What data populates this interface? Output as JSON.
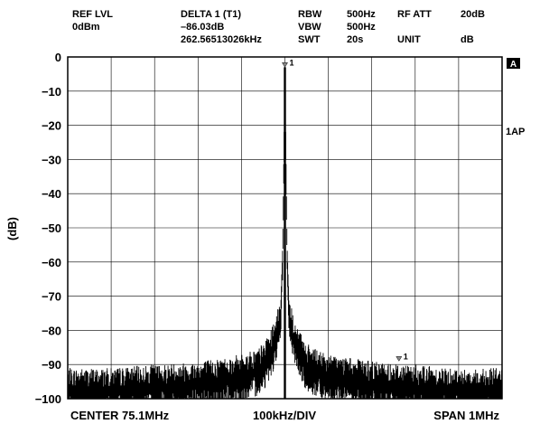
{
  "header": {
    "ref_lvl_label": "REF LVL",
    "ref_lvl_value": "0dBm",
    "delta_label": "DELTA 1 (T1)",
    "delta_level": "–86.03dB",
    "delta_freq": "262.56513026kHz",
    "rbw_label": "RBW",
    "rbw_value": "500Hz",
    "vbw_label": "VBW",
    "vbw_value": "500Hz",
    "swt_label": "SWT",
    "swt_value": "20s",
    "rf_att_label": "RF ATT",
    "rf_att_value": "20dB",
    "unit_label": "UNIT",
    "unit_value": "dB"
  },
  "side": {
    "trace_badge": "A",
    "detector": "1AP"
  },
  "footer": {
    "center": "CENTER 75.1MHz",
    "div": "100kHz/DIV",
    "span": "SPAN 1MHz"
  },
  "colors": {
    "trace": "#000000",
    "grid": "#000000",
    "background": "#ffffff"
  },
  "chart_data": {
    "type": "line",
    "title": "",
    "xlabel": "",
    "ylabel": "(dB)",
    "ylim": [
      -100,
      0
    ],
    "yticks": [
      "0",
      "−10",
      "−20",
      "−30",
      "−40",
      "−50",
      "−60",
      "−70",
      "−80",
      "−90",
      "−100"
    ],
    "xlim_khz": [
      -500,
      500
    ],
    "x_divisions": 10,
    "grid": true,
    "series": [
      {
        "x_khz": [
          -500,
          -400,
          -300,
          -200,
          -150,
          -100,
          -60,
          -40,
          -20,
          -10,
          -5,
          0,
          5,
          10,
          20,
          40,
          60,
          100,
          150,
          200,
          300,
          400,
          500
        ],
        "values": [
          -95,
          -95,
          -94,
          -93,
          -92,
          -91,
          -89,
          -86,
          -80,
          -74,
          -55,
          -3,
          -55,
          -74,
          -80,
          -86,
          -89,
          -91,
          -92,
          -93,
          -94,
          -95,
          -95
        ]
      }
    ],
    "markers": [
      {
        "label": "1",
        "x_khz": 0,
        "value": -3
      },
      {
        "label": "1",
        "x_khz": 262.57,
        "value": -89
      }
    ]
  }
}
